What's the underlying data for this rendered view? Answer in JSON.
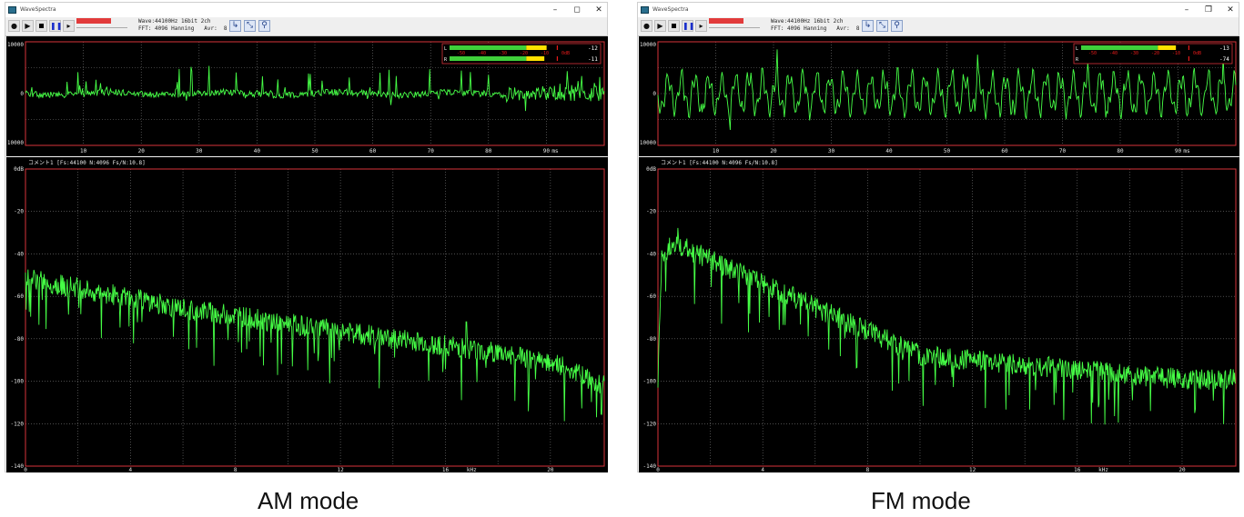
{
  "windows": [
    {
      "id": "am",
      "caption": "AM mode",
      "app_title": "WaveSpectra",
      "window_controls": {
        "minimize": "–",
        "restore": "◻",
        "close": "✕"
      },
      "toolbar": {
        "buttons": [
          "record-icon",
          "play-icon",
          "stop-icon",
          "pause-icon",
          "step-icon"
        ],
        "format_line": "Wave:44100Hz 16bit 2ch",
        "fft_line": "FFT: 4096 Hanning   Avr:  8",
        "tools": [
          "cursor-icon",
          "scale-icon",
          "zoom-icon"
        ]
      },
      "level_meter": {
        "rows": [
          "L",
          "R"
        ],
        "scale": [
          "-50",
          "-40",
          "-30",
          "-20",
          "-10",
          "0dB"
        ],
        "values": [
          "-12",
          "-11"
        ],
        "levels": [
          0.86,
          0.84
        ],
        "colors": {
          "green": "#3fd03a",
          "yellow": "#ffe000",
          "red": "#e81b1b"
        }
      },
      "oscilloscope": {
        "y_ticks": [
          "10000",
          "0",
          "-10000"
        ],
        "x_ticks": [
          "10",
          "20",
          "30",
          "40",
          "50",
          "60",
          "70",
          "80",
          "90"
        ],
        "x_unit": "ms"
      },
      "spectrum": {
        "comment": "コメント1  [Fs:44100 N:4096 Fs/N:10.8]",
        "y_ticks": [
          "0dB",
          "-20",
          "-40",
          "-60",
          "-80",
          "-100",
          "-120",
          "-140"
        ],
        "x_ticks": [
          "0",
          "4",
          "8",
          "12",
          "16",
          "20"
        ],
        "x_unit": "kHz"
      },
      "colors": {
        "trace": "#46ff46",
        "grid": "#7a7a7a",
        "frame": "#d9343a",
        "background": "#000000"
      }
    },
    {
      "id": "fm",
      "caption": "FM mode",
      "app_title": "WaveSpectra",
      "window_controls": {
        "minimize": "–",
        "restore": "❐",
        "close": "✕"
      },
      "toolbar": {
        "buttons": [
          "record-icon",
          "play-icon",
          "stop-icon",
          "pause-icon",
          "step-icon"
        ],
        "format_line": "Wave:44100Hz 16bit 2ch",
        "fft_line": "FFT: 4096 Hanning   Avr:  8",
        "tools": [
          "cursor-icon",
          "scale-icon",
          "zoom-icon"
        ]
      },
      "level_meter": {
        "rows": [
          "L",
          "R"
        ],
        "scale": [
          "-50",
          "-40",
          "-30",
          "-20",
          "-10",
          "0dB"
        ],
        "values": [
          "-13",
          "-74"
        ],
        "levels": [
          0.84,
          0.0
        ],
        "colors": {
          "green": "#3fd03a",
          "yellow": "#ffe000",
          "red": "#e81b1b"
        }
      },
      "oscilloscope": {
        "y_ticks": [
          "10000",
          "0",
          "-10000"
        ],
        "x_ticks": [
          "10",
          "20",
          "30",
          "40",
          "50",
          "60",
          "70",
          "80",
          "90"
        ],
        "x_unit": "ms"
      },
      "spectrum": {
        "comment": "コメント1  [Fs:44100 N:4096 Fs/N:10.8]",
        "y_ticks": [
          "0dB",
          "-20",
          "-40",
          "-60",
          "-80",
          "-100",
          "-120",
          "-140"
        ],
        "x_ticks": [
          "0",
          "4",
          "8",
          "12",
          "16",
          "20"
        ],
        "x_unit": "kHz"
      },
      "colors": {
        "trace": "#46ff46",
        "grid": "#7a7a7a",
        "frame": "#d9343a",
        "background": "#000000"
      }
    }
  ]
}
